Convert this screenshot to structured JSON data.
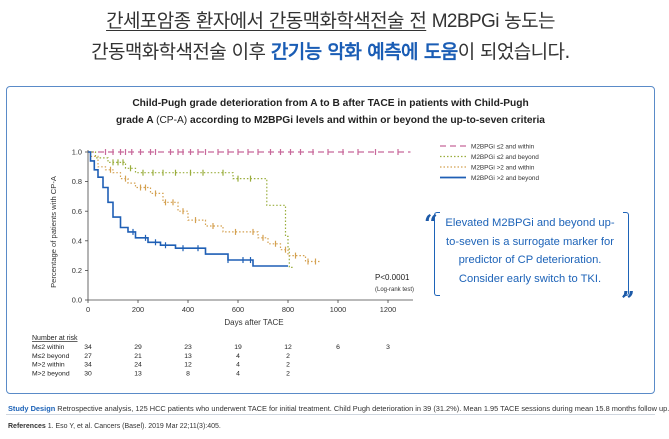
{
  "headline": {
    "line1_pre": "간세포암종 환자에서 간동맥화학색전술 전",
    "line1_em": "M2BPGi",
    "line1_post": "농도는",
    "line2_pre": "간동맥화학색전술 이후",
    "line2_hl": "간기능 악화 예측에 도움",
    "line2_post": "이 되었습니다."
  },
  "callout": {
    "text": "Elevated M2BPGi and beyond up-to-seven is a surrogate marker for predictor of CP deterioration. Consider early switch to TKI."
  },
  "study": {
    "label": "Study Design",
    "text": "Retrospective analysis, 125 HCC patients who underwent TACE for initial treatment. Child Pugh deterioration in 39 (31.2%). Mean 1.95 TACE sessions during mean 15.8 months follow up."
  },
  "references": {
    "label": "References",
    "text": "1. Eso Y, et al. Cancers (Basel). 2019 Mar 22;11(3):405."
  },
  "chart_data": {
    "type": "line",
    "title_line1": "Child-Pugh grade deterioration from A to B after TACE in patients with Child-Pugh",
    "title_line2_bold_a": "grade A",
    "title_line2_light": "(CP-A)",
    "title_line2_bold_b": "according to M2BPGi levels and within or beyond the up-to-seven criteria",
    "xlabel": "Days after TACE",
    "ylabel": "Percentage of patients with CP-A",
    "xlim": [
      0,
      1300
    ],
    "ylim": [
      0,
      1.0
    ],
    "xticks": [
      "0",
      "200",
      "400",
      "600",
      "800",
      "1000",
      "1200"
    ],
    "xtick_values": [
      0,
      200,
      400,
      600,
      800,
      1000,
      1200
    ],
    "yticks": [
      "0.0",
      "0.2",
      "0.4",
      "0.6",
      "0.8",
      "1.0"
    ],
    "ytick_values": [
      0.0,
      0.2,
      0.4,
      0.6,
      0.8,
      1.0
    ],
    "pvalue": "P<0.0001",
    "pvalue_test": "(Log-rank test)",
    "legend_position": "top-right",
    "series": [
      {
        "name": "M2BPGi ≤2 and within",
        "color": "#c8689a",
        "dash": "6,4",
        "points": [
          [
            0,
            1.0
          ],
          [
            1290,
            1.0
          ]
        ],
        "censors": [
          70,
          100,
          130,
          150,
          175,
          210,
          250,
          270,
          330,
          360,
          380,
          410,
          440,
          470,
          520,
          560,
          600,
          640,
          680,
          730,
          770,
          810,
          850,
          900,
          960,
          1020,
          1080,
          1150,
          1240
        ]
      },
      {
        "name": "M2BPGi ≤2 and beyond",
        "color": "#9aad3c",
        "dash": "1.5,2",
        "points": [
          [
            0,
            1.0
          ],
          [
            30,
            0.96
          ],
          [
            80,
            0.93
          ],
          [
            150,
            0.89
          ],
          [
            190,
            0.86
          ],
          [
            230,
            0.86
          ],
          [
            560,
            0.86
          ],
          [
            580,
            0.82
          ],
          [
            690,
            0.82
          ],
          [
            715,
            0.64
          ],
          [
            775,
            0.64
          ],
          [
            790,
            0.43
          ],
          [
            800,
            0.35
          ],
          [
            805,
            0.22
          ],
          [
            825,
            0.22
          ]
        ],
        "censors": [
          100,
          120,
          140,
          170,
          220,
          260,
          300,
          350,
          410,
          460,
          540,
          600,
          650
        ]
      },
      {
        "name": "M2BPGi >2 and within",
        "color": "#d4a150",
        "dash": "1.5,2",
        "points": [
          [
            0,
            1.0
          ],
          [
            10,
            0.97
          ],
          [
            40,
            0.9
          ],
          [
            70,
            0.88
          ],
          [
            100,
            0.86
          ],
          [
            130,
            0.82
          ],
          [
            160,
            0.79
          ],
          [
            190,
            0.76
          ],
          [
            250,
            0.72
          ],
          [
            300,
            0.66
          ],
          [
            360,
            0.6
          ],
          [
            400,
            0.54
          ],
          [
            470,
            0.5
          ],
          [
            540,
            0.46
          ],
          [
            620,
            0.46
          ],
          [
            680,
            0.42
          ],
          [
            720,
            0.38
          ],
          [
            770,
            0.34
          ],
          [
            800,
            0.3
          ],
          [
            850,
            0.3
          ],
          [
            870,
            0.26
          ],
          [
            930,
            0.26
          ]
        ],
        "censors": [
          90,
          150,
          210,
          230,
          270,
          310,
          340,
          380,
          430,
          500,
          590,
          660,
          700,
          750,
          790,
          830,
          880,
          910
        ]
      },
      {
        "name": "M2BPGi >2 and beyond",
        "color": "#1f5fb5",
        "dash": "",
        "points": [
          [
            0,
            1.0
          ],
          [
            10,
            0.94
          ],
          [
            25,
            0.88
          ],
          [
            40,
            0.83
          ],
          [
            60,
            0.76
          ],
          [
            80,
            0.66
          ],
          [
            100,
            0.56
          ],
          [
            130,
            0.49
          ],
          [
            160,
            0.46
          ],
          [
            190,
            0.42
          ],
          [
            240,
            0.39
          ],
          [
            290,
            0.37
          ],
          [
            350,
            0.35
          ],
          [
            430,
            0.35
          ],
          [
            470,
            0.31
          ],
          [
            540,
            0.31
          ],
          [
            560,
            0.27
          ],
          [
            640,
            0.27
          ],
          [
            660,
            0.23
          ],
          [
            760,
            0.23
          ],
          [
            800,
            0.23
          ]
        ],
        "censors": [
          180,
          230,
          270,
          310,
          380,
          440,
          560,
          620,
          650
        ]
      }
    ],
    "at_risk": {
      "header": "Number at risk",
      "rows": [
        {
          "label": "M≤2 within",
          "values": [
            "34",
            "29",
            "23",
            "19",
            "12",
            "6",
            "3"
          ]
        },
        {
          "label": "M≤2 beyond",
          "values": [
            "27",
            "21",
            "13",
            "4",
            "2",
            "",
            ""
          ]
        },
        {
          "label": "M>2 within",
          "values": [
            "34",
            "24",
            "12",
            "4",
            "2",
            "",
            ""
          ]
        },
        {
          "label": "M>2 beyond",
          "values": [
            "30",
            "13",
            "8",
            "4",
            "2",
            "",
            ""
          ]
        }
      ]
    }
  }
}
